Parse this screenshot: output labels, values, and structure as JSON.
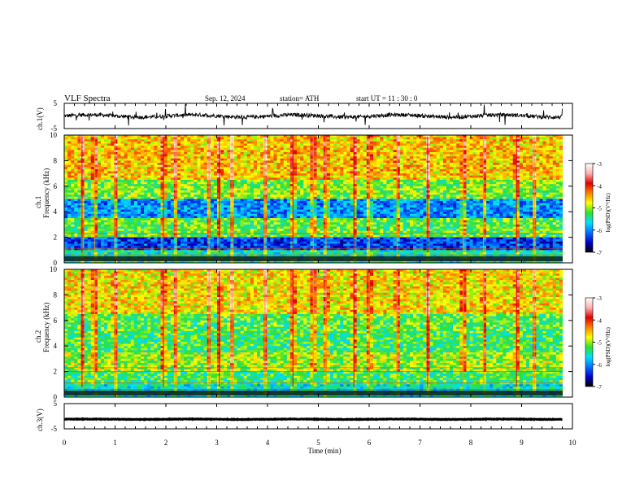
{
  "header": {
    "title": "VLF  Spectra",
    "date": "Sep. 12, 2024",
    "station": "station= ATH",
    "start": "start  UT  =    11 : 30 : 0"
  },
  "panels": {
    "ch1v": {
      "ylabel": "ch.1(V)",
      "ticks": [
        "5",
        "-5"
      ]
    },
    "spec1": {
      "ylabel_ch": "ch.1",
      "ylabel": "Frequency  (kHz)",
      "ticks": [
        "10",
        "8",
        "6",
        "4",
        "2",
        "0"
      ]
    },
    "spec2": {
      "ylabel_ch": "ch.2",
      "ylabel": "Frequency  (kHz)",
      "ticks": [
        "10",
        "8",
        "6",
        "4",
        "2",
        "0"
      ]
    },
    "ch3v": {
      "ylabel": "ch.3(V)",
      "ticks": [
        "5",
        "-5"
      ]
    }
  },
  "xaxis": {
    "label": "Time  (min)",
    "ticks": [
      "0",
      "1",
      "2",
      "3",
      "4",
      "5",
      "6",
      "7",
      "8",
      "9",
      "10"
    ]
  },
  "colorbar": {
    "label": "log(PSD)(V²/Hz)",
    "ticks": [
      "-3",
      "-4",
      "-5",
      "-6",
      "-7"
    ],
    "colors": [
      "#000000",
      "#0000d0",
      "#0070ff",
      "#00e0ff",
      "#30e030",
      "#ffff00",
      "#ff8000",
      "#e00000",
      "#ffb0b0",
      "#ffffff"
    ]
  },
  "chart_data": [
    {
      "type": "line",
      "name": "ch.1 waveform",
      "xlabel": "Time (min)",
      "ylabel": "ch.1(V)",
      "xlim": [
        0,
        10
      ],
      "ylim": [
        -5,
        5
      ],
      "baseline": 0,
      "noise_amplitude": 1.5
    },
    {
      "type": "heatmap",
      "name": "ch.1 spectrogram",
      "xlabel": "Time (min)",
      "ylabel": "Frequency (kHz)",
      "xlim": [
        0,
        10
      ],
      "ylim": [
        0,
        10
      ],
      "bands": [
        {
          "f": [
            0.0,
            1.0
          ],
          "level": -5.5
        },
        {
          "f": [
            1.0,
            2.0
          ],
          "level": -6.3
        },
        {
          "f": [
            2.0,
            3.5
          ],
          "level": -5.2
        },
        {
          "f": [
            3.5,
            5.0
          ],
          "level": -6.0
        },
        {
          "f": [
            5.0,
            6.5
          ],
          "level": -5.1
        },
        {
          "f": [
            6.5,
            10.0
          ],
          "level": -4.6
        }
      ],
      "bursts_t": [
        0.35,
        0.6,
        1.0,
        1.95,
        2.2,
        2.85,
        3.05,
        3.3,
        3.95,
        4.5,
        4.9,
        5.15,
        5.7,
        6.0,
        6.55,
        7.15,
        7.85,
        8.25,
        8.9,
        9.25
      ]
    },
    {
      "type": "heatmap",
      "name": "ch.2 spectrogram",
      "xlabel": "Time (min)",
      "ylabel": "Frequency (kHz)",
      "xlim": [
        0,
        10
      ],
      "ylim": [
        0,
        10
      ],
      "bands": [
        {
          "f": [
            0.0,
            1.0
          ],
          "level": -5.6
        },
        {
          "f": [
            1.0,
            2.0
          ],
          "level": -5.3
        },
        {
          "f": [
            2.0,
            3.5
          ],
          "level": -5.0
        },
        {
          "f": [
            3.5,
            5.0
          ],
          "level": -5.3
        },
        {
          "f": [
            5.0,
            6.5
          ],
          "level": -5.2
        },
        {
          "f": [
            6.5,
            10.0
          ],
          "level": -4.7
        }
      ],
      "bursts_t": [
        0.35,
        0.6,
        1.0,
        1.95,
        2.2,
        2.85,
        3.05,
        3.3,
        3.95,
        4.5,
        4.9,
        5.15,
        5.7,
        6.0,
        6.55,
        7.15,
        7.85,
        8.25,
        8.9,
        9.25
      ]
    },
    {
      "type": "line",
      "name": "ch.3 waveform",
      "xlabel": "Time (min)",
      "ylabel": "ch.3(V)",
      "xlim": [
        0,
        10
      ],
      "ylim": [
        -5,
        5
      ],
      "baseline": -1.2,
      "noise_amplitude": 0.2
    }
  ]
}
